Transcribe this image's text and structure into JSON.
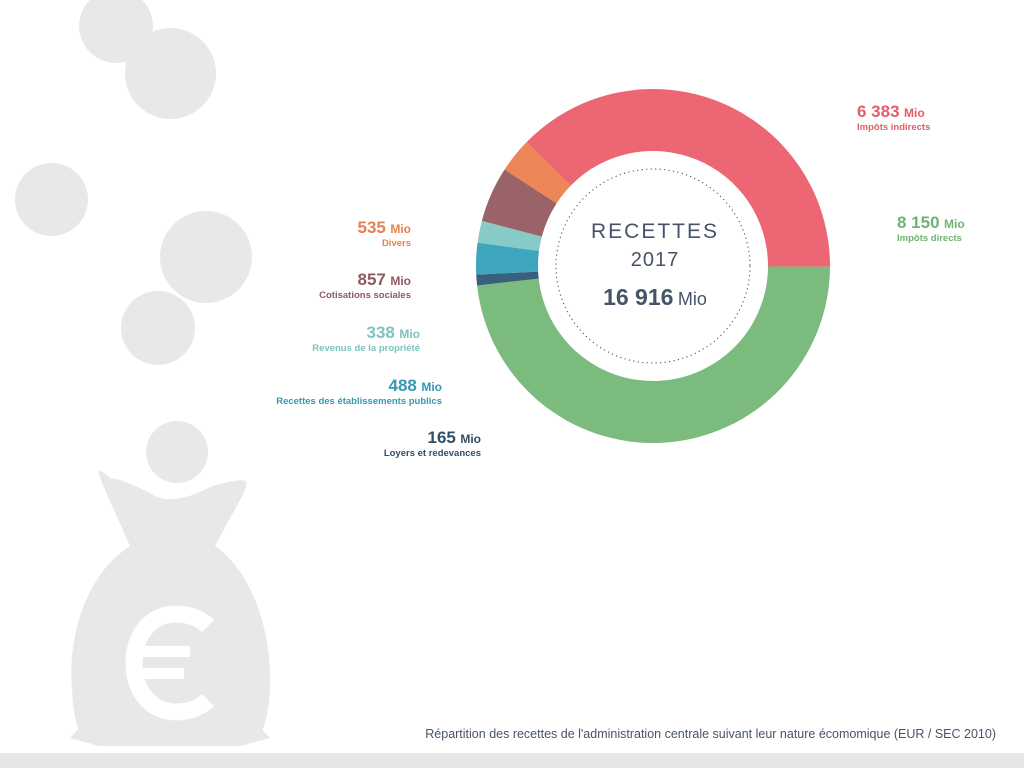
{
  "center": {
    "title": "RECETTES",
    "year": "2017",
    "total_value": "16 916",
    "total_unit": "Mio"
  },
  "caption": "Répartition des recettes de l'administration centrale suivant leur nature écomomique (EUR / SEC 2010)",
  "icons": {
    "coins": "coin-icon",
    "bag": "money-bag-icon",
    "currency": "euro-icon"
  },
  "chart_data": {
    "type": "pie",
    "variant": "donut",
    "total": 16916,
    "unit": "Mio",
    "series": [
      {
        "key": "impots_indirects",
        "value": 6383,
        "value_text": "6 383",
        "unit": "Mio",
        "label": "Impôts indirects",
        "color": "#ec6674",
        "label_side": "right"
      },
      {
        "key": "impots_directs",
        "value": 8150,
        "value_text": "8 150",
        "unit": "Mio",
        "label": "Impôts directs",
        "color": "#7bbb7e",
        "label_side": "right"
      },
      {
        "key": "loyers",
        "value": 165,
        "value_text": "165",
        "unit": "Mio",
        "label": "Loyers et redevances",
        "color": "#3a5f7c",
        "label_side": "left"
      },
      {
        "key": "etablissements",
        "value": 488,
        "value_text": "488",
        "unit": "Mio",
        "label": "Recettes des  établissements publics",
        "color": "#3ea5bf",
        "label_side": "left"
      },
      {
        "key": "propriete",
        "value": 338,
        "value_text": "338",
        "unit": "Mio",
        "label": "Revenus de la propriété",
        "color": "#86cbc6",
        "label_side": "left"
      },
      {
        "key": "cotisations",
        "value": 857,
        "value_text": "857",
        "unit": "Mio",
        "label": "Cotisations sociales",
        "color": "#9a6367",
        "label_side": "left"
      },
      {
        "key": "divers",
        "value": 535,
        "value_text": "535",
        "unit": "Mio",
        "label": "Divers",
        "color": "#ee8556",
        "label_side": "left"
      }
    ]
  }
}
